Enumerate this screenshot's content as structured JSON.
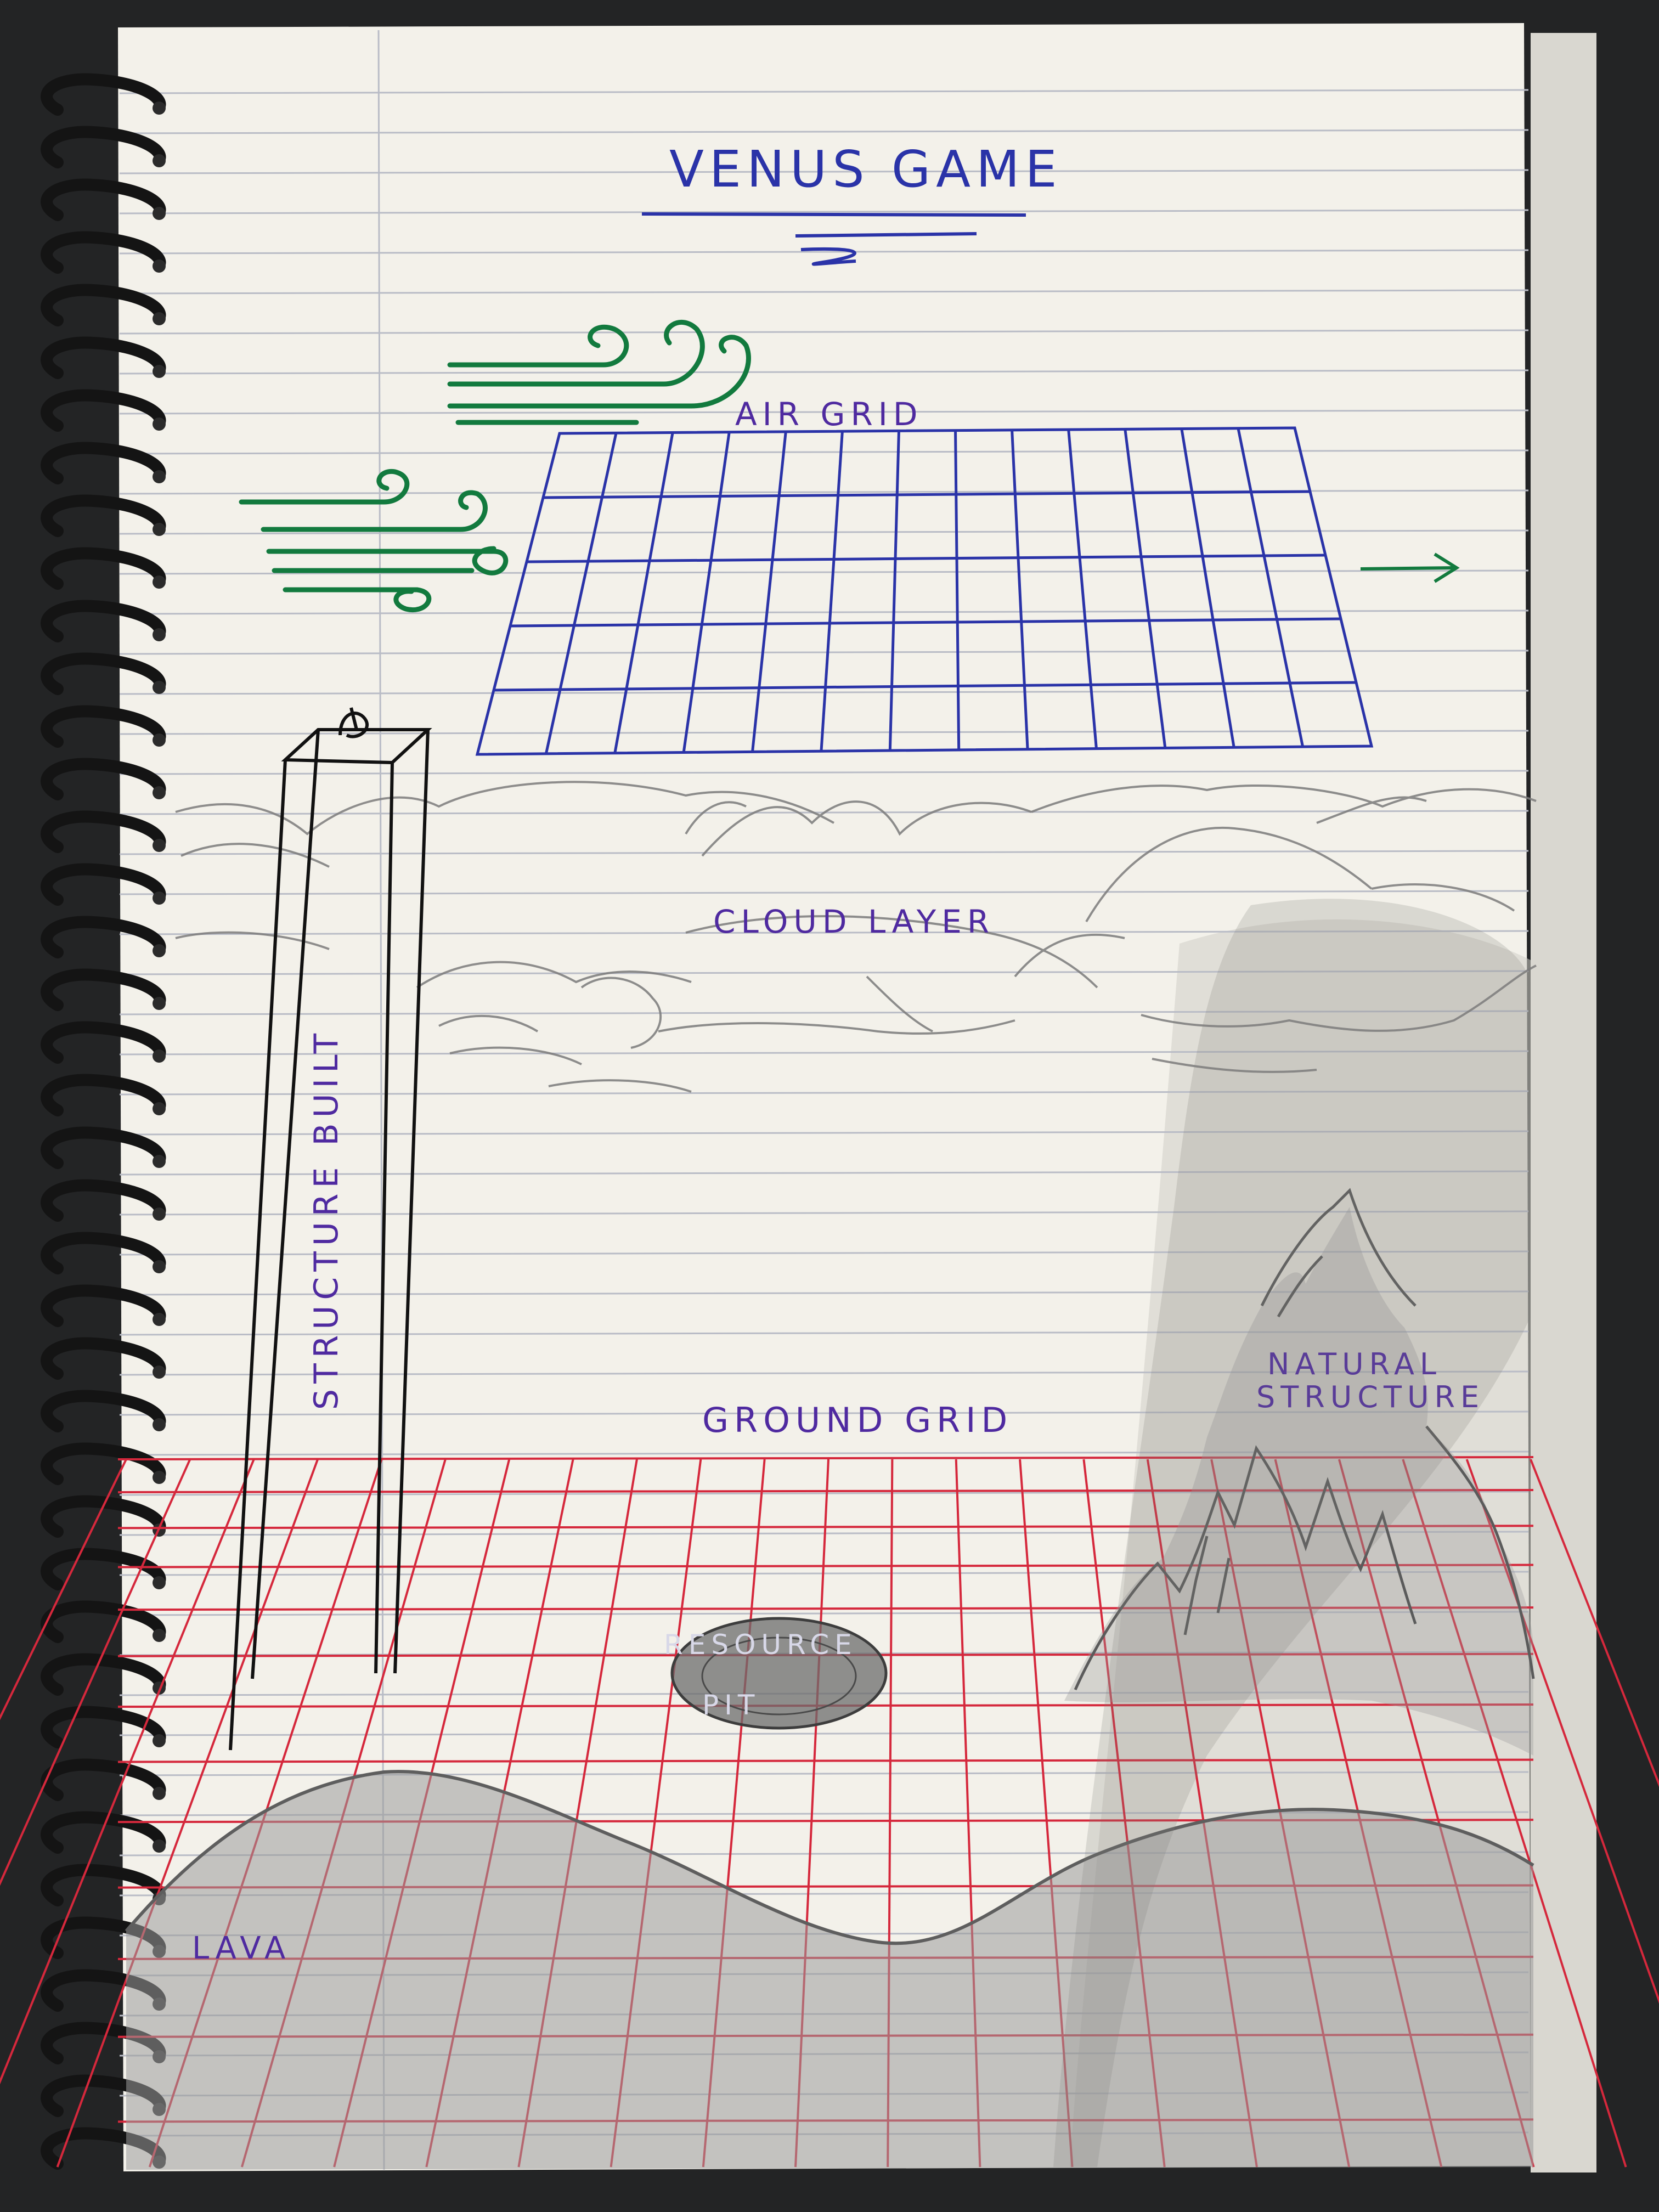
{
  "labels": {
    "title": "VENUS GAME",
    "air_grid": "AIR GRID",
    "cloud_layer": "CLOUD LAYER",
    "structure_built": "STRUCTURE BUILT",
    "ground_grid": "GROUND GRID",
    "natural_structure_line1": "NATURAL",
    "natural_structure_line2": "STRUCTURE",
    "resource_pit_line1": "RESOURCE",
    "resource_pit_line2": "PIT",
    "lava": "LAVA"
  },
  "colors": {
    "paper": "#f3f1ea",
    "rule_line": "#b9bcc6",
    "margin_line": "#b9bcc6",
    "background": "#232425",
    "spiral": "#141414",
    "ink_blue": "#2a33a8",
    "ink_green": "#127a3e",
    "ink_purple": "#4f2aa0",
    "ink_red": "#d5283c",
    "ink_black": "#111111",
    "pencil": "#7b7b7b"
  },
  "icons": {
    "wind": "wind-swirl-icon",
    "arrow": "arrow-right-icon",
    "spiral": "spiral-binding"
  }
}
